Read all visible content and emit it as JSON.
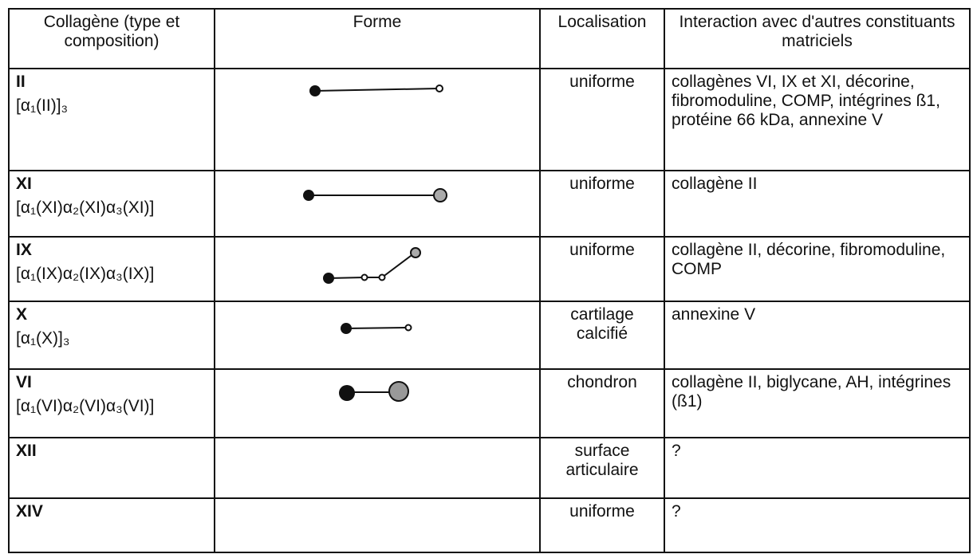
{
  "header": [
    "Collagène (type et composition)",
    "Forme",
    "Localisation",
    "Interaction avec d'autres constituants matriciels"
  ],
  "rows": [
    {
      "type": "II",
      "composition": "[α₁(II)]₃",
      "localisation": "uniforme",
      "interaction": "collagènes VI, IX et XI, décorine, fibromoduline, COMP, intégrines ß1, protéine 66 kDa, annexine V"
    },
    {
      "type": "XI",
      "composition": "[α₁(XI)α₂(XI)α₃(XI)]",
      "localisation": "uniforme",
      "interaction": "collagène II"
    },
    {
      "type": "IX",
      "composition": "[α₁(IX)α₂(IX)α₃(IX)]",
      "localisation": "uniforme",
      "interaction": "collagène II, décorine, fibromoduline, COMP"
    },
    {
      "type": "X",
      "composition": "[α₁(X)]₃",
      "localisation": "cartilage calcifié",
      "interaction": "annexine V"
    },
    {
      "type": "VI",
      "composition": "[α₁(VI)α₂(VI)α₃(VI)]",
      "localisation": "chondron",
      "interaction": "collagène II, biglycane, AH, intégrines (ß1)"
    },
    {
      "type": "XII",
      "localisation": "surface articulaire",
      "interaction": "?"
    },
    {
      "type": "XIV",
      "localisation": "uniforme",
      "interaction": "?"
    }
  ]
}
